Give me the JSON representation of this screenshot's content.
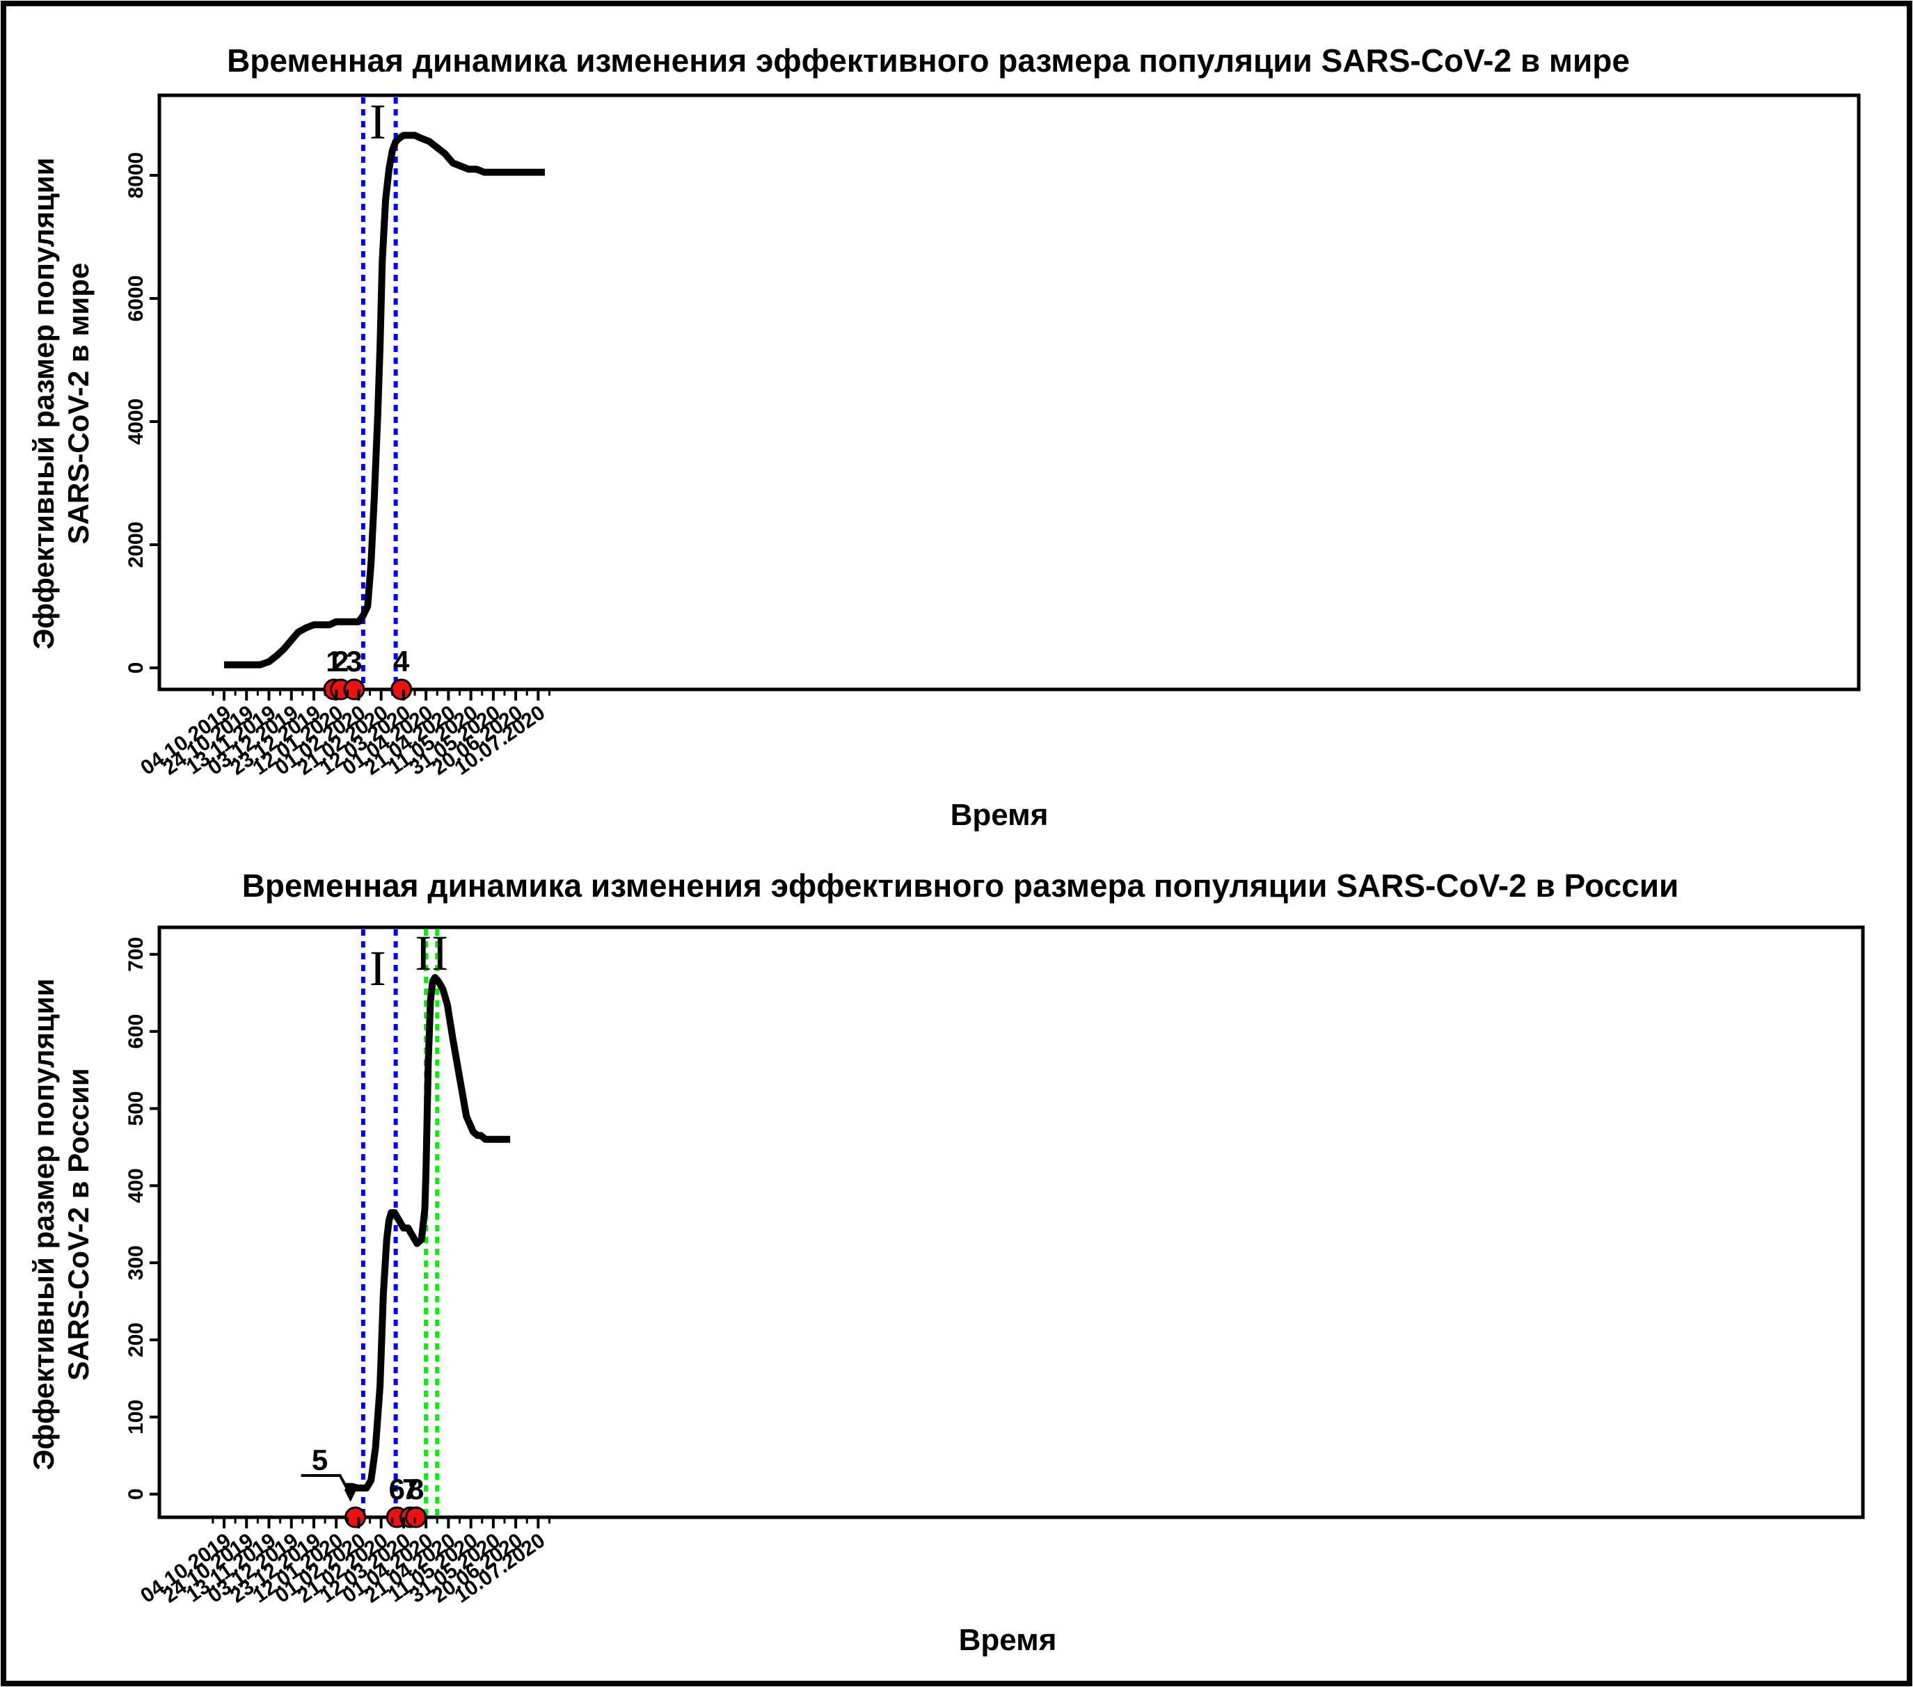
{
  "x_ticks": [
    "04.10.2019",
    "24.10.2019",
    "13.11.2019",
    "03.12.2019",
    "23.12.2019",
    "12.01.2020",
    "01.02.2020",
    "21.02.2020",
    "12.03.2020",
    "01.04.2020",
    "21.04.2020",
    "11.05.2020",
    "31.05.2020",
    "20.06.2020",
    "10.07.2020"
  ],
  "colors": {
    "line": "#000000",
    "blue_marker": "#0000ff",
    "green_marker": "#00ee00",
    "event_fill": "#ee1111"
  },
  "chart_data": [
    {
      "type": "line",
      "title": "Временная динамика изменения эффективного размера популяции SARS-CoV-2 в мире",
      "xlabel": "Время",
      "ylabel_line1": "Эффективный размер популяции",
      "ylabel_line2": "SARS-CoV-2 в мире",
      "ylim": [
        -350,
        9300
      ],
      "yticks": [
        0,
        2000,
        4000,
        6000,
        8000
      ],
      "series": [
        {
          "x": [
            "2019-10-04",
            "2019-10-20",
            "2019-11-05",
            "2019-11-13",
            "2019-11-20",
            "2019-11-26",
            "2019-12-03",
            "2019-12-09",
            "2019-12-16",
            "2019-12-23",
            "2019-12-30",
            "2020-01-06",
            "2020-01-12",
            "2020-01-19",
            "2020-01-26",
            "2020-02-01",
            "2020-02-05",
            "2020-02-09",
            "2020-02-12",
            "2020-02-15",
            "2020-02-18",
            "2020-02-20",
            "2020-02-22",
            "2020-02-25",
            "2020-02-28",
            "2020-03-02",
            "2020-03-05",
            "2020-03-08",
            "2020-03-12",
            "2020-03-16",
            "2020-03-22",
            "2020-03-28",
            "2020-04-04",
            "2020-04-11",
            "2020-04-18",
            "2020-04-25",
            "2020-05-02",
            "2020-05-09",
            "2020-05-16",
            "2020-05-23",
            "2020-05-31",
            "2020-06-20",
            "2020-07-10",
            "2020-07-16"
          ],
          "y": [
            50,
            50,
            50,
            100,
            200,
            300,
            450,
            580,
            650,
            700,
            700,
            700,
            750,
            750,
            750,
            750,
            850,
            1000,
            1700,
            2800,
            4100,
            5200,
            6600,
            7600,
            8100,
            8400,
            8550,
            8600,
            8650,
            8650,
            8650,
            8600,
            8550,
            8450,
            8350,
            8200,
            8150,
            8100,
            8100,
            8050,
            8050,
            8050,
            8050,
            8050
          ]
        }
      ],
      "period_lines": [
        {
          "date": "2020-02-05",
          "color": "blue"
        },
        {
          "date": "2020-03-05",
          "color": "blue"
        }
      ],
      "period_labels": [
        {
          "text": "I",
          "date": "2020-02-18",
          "y": 8600
        }
      ],
      "events": [
        {
          "label": "1",
          "date": "2020-01-10"
        },
        {
          "label": "2",
          "date": "2020-01-16"
        },
        {
          "label": "3",
          "date": "2020-01-28"
        },
        {
          "label": "4",
          "date": "2020-03-10"
        }
      ]
    },
    {
      "type": "line",
      "title": "Временная динамика изменения эффективного размера популяции SARS-CoV-2 в России",
      "xlabel": "Время",
      "ylabel_line1": "Эффективный размер популяции",
      "ylabel_line2": "SARS-CoV-2 в России",
      "ylim": [
        -30,
        735
      ],
      "yticks": [
        0,
        100,
        200,
        300,
        400,
        500,
        600,
        700
      ],
      "series": [
        {
          "x": [
            "2020-01-20",
            "2020-01-26",
            "2020-01-31",
            "2020-02-08",
            "2020-02-12",
            "2020-02-16",
            "2020-02-20",
            "2020-02-23",
            "2020-02-26",
            "2020-02-28",
            "2020-03-01",
            "2020-03-04",
            "2020-03-06",
            "2020-03-08",
            "2020-03-12",
            "2020-03-16",
            "2020-03-18",
            "2020-03-24",
            "2020-03-28",
            "2020-03-31",
            "2020-04-01",
            "2020-04-03",
            "2020-04-05",
            "2020-04-07",
            "2020-04-09",
            "2020-04-12",
            "2020-04-16",
            "2020-04-20",
            "2020-04-25",
            "2020-05-01",
            "2020-05-07",
            "2020-05-13",
            "2020-05-17",
            "2020-05-20",
            "2020-05-24",
            "2020-05-28",
            "2020-06-01",
            "2020-06-05",
            "2020-06-10",
            "2020-06-15"
          ],
          "y": [
            10,
            10,
            8,
            8,
            18,
            60,
            140,
            260,
            330,
            355,
            365,
            365,
            360,
            355,
            345,
            345,
            340,
            325,
            330,
            370,
            420,
            560,
            640,
            665,
            670,
            665,
            655,
            635,
            590,
            540,
            490,
            470,
            465,
            465,
            460,
            460,
            460,
            460,
            460,
            460
          ]
        }
      ],
      "period_lines": [
        {
          "date": "2020-02-05",
          "color": "blue"
        },
        {
          "date": "2020-03-05",
          "color": "blue"
        },
        {
          "date": "2020-04-01",
          "color": "green"
        },
        {
          "date": "2020-04-11",
          "color": "green"
        }
      ],
      "period_labels": [
        {
          "text": "I",
          "date": "2020-02-18",
          "y": 660
        },
        {
          "text": "II",
          "date": "2020-04-06",
          "y": 680
        }
      ],
      "events": [
        {
          "label": "5",
          "date": "2020-01-29",
          "callout": true
        },
        {
          "label": "6",
          "date": "2020-03-06"
        },
        {
          "label": "7",
          "date": "2020-03-18"
        },
        {
          "label": "8",
          "date": "2020-03-23"
        }
      ]
    }
  ]
}
